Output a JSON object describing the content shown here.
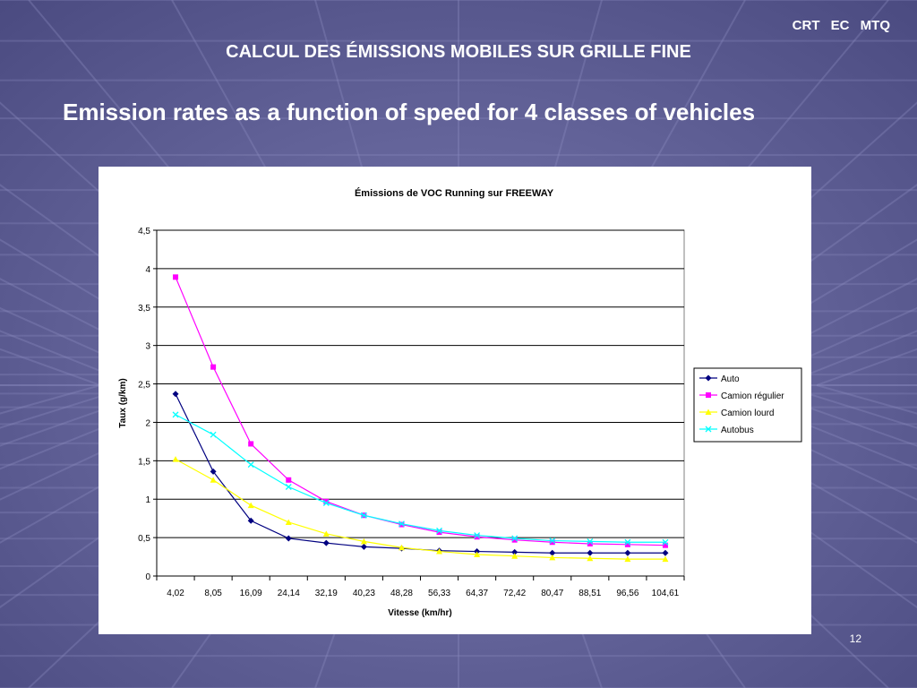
{
  "header": {
    "org": "CRT   EC   MTQ",
    "subtitle": "CALCUL DES ÉMISSIONS MOBILES SUR GRILLE FINE",
    "title": "Emission rates as a function of speed for 4 classes of vehicles"
  },
  "slide_number": "12",
  "colors": {
    "background": "#5c5c92",
    "text": "#ffffff"
  },
  "chart_data": {
    "type": "line",
    "title": "Émissions de VOC Running sur FREEWAY",
    "xlabel": "Vitesse (km/hr)",
    "ylabel": "Taux (g/km)",
    "categories": [
      "4,02",
      "8,05",
      "16,09",
      "24,14",
      "32,19",
      "40,23",
      "48,28",
      "56,33",
      "64,37",
      "72,42",
      "80,47",
      "88,51",
      "96,56",
      "104,61"
    ],
    "ylim": [
      0,
      4.5
    ],
    "yticks": [
      0,
      0.5,
      1,
      1.5,
      2,
      2.5,
      3,
      3.5,
      4,
      4.5
    ],
    "ytick_labels": [
      "0",
      "0,5",
      "1",
      "1,5",
      "2",
      "2,5",
      "3",
      "3,5",
      "4",
      "4,5"
    ],
    "grid": true,
    "legend_position": "right",
    "series": [
      {
        "name": "Auto",
        "color": "#000080",
        "marker": "diamond",
        "values": [
          2.37,
          1.36,
          0.72,
          0.49,
          0.43,
          0.38,
          0.36,
          0.33,
          0.32,
          0.31,
          0.3,
          0.3,
          0.3,
          0.3
        ]
      },
      {
        "name": "Camion régulier",
        "color": "#ff00ff",
        "marker": "square",
        "values": [
          3.89,
          2.72,
          1.72,
          1.25,
          0.97,
          0.79,
          0.67,
          0.57,
          0.51,
          0.47,
          0.44,
          0.42,
          0.41,
          0.4
        ]
      },
      {
        "name": "Camion lourd",
        "color": "#ffff00",
        "marker": "triangle",
        "values": [
          1.52,
          1.25,
          0.92,
          0.7,
          0.55,
          0.45,
          0.37,
          0.32,
          0.28,
          0.26,
          0.24,
          0.23,
          0.22,
          0.22
        ]
      },
      {
        "name": "Autobus",
        "color": "#00ffff",
        "marker": "x",
        "values": [
          2.1,
          1.84,
          1.45,
          1.16,
          0.95,
          0.79,
          0.68,
          0.59,
          0.53,
          0.49,
          0.46,
          0.45,
          0.44,
          0.44
        ]
      }
    ]
  }
}
